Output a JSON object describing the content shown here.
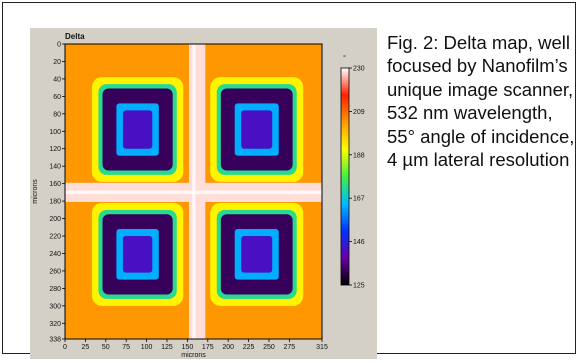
{
  "caption": "Fig. 2: Delta map, well focused by Nanofilm’s unique image scanner, 532 nm wavelength, 55° angle of incidence, 4 µm lateral resolution",
  "chart_data": {
    "type": "heatmap",
    "title": "Delta",
    "xlabel": "microns",
    "ylabel": "microns",
    "x_ticks": [
      0,
      25,
      50,
      75,
      100,
      125,
      150,
      175,
      200,
      225,
      250,
      275,
      315
    ],
    "y_ticks": [
      0,
      20,
      40,
      60,
      80,
      100,
      120,
      140,
      160,
      180,
      200,
      220,
      240,
      260,
      280,
      300,
      320,
      338
    ],
    "xlim": [
      0,
      315
    ],
    "ylim": [
      0,
      338
    ],
    "colorbar": {
      "unit": "°",
      "ticks": [
        230,
        209,
        188,
        167,
        146,
        125
      ],
      "range": [
        125,
        230
      ],
      "colors": [
        "#ffffff",
        "#ff2200",
        "#ff9900",
        "#ffff00",
        "#44ee44",
        "#00bbff",
        "#0033ff",
        "#6600aa",
        "#000000"
      ]
    },
    "levels": {
      "background": 204,
      "cross": 228,
      "green_ring": 192,
      "cyan_ring": 172,
      "dark_block": 132,
      "inner_blue": 163,
      "center_dark": 142
    }
  }
}
